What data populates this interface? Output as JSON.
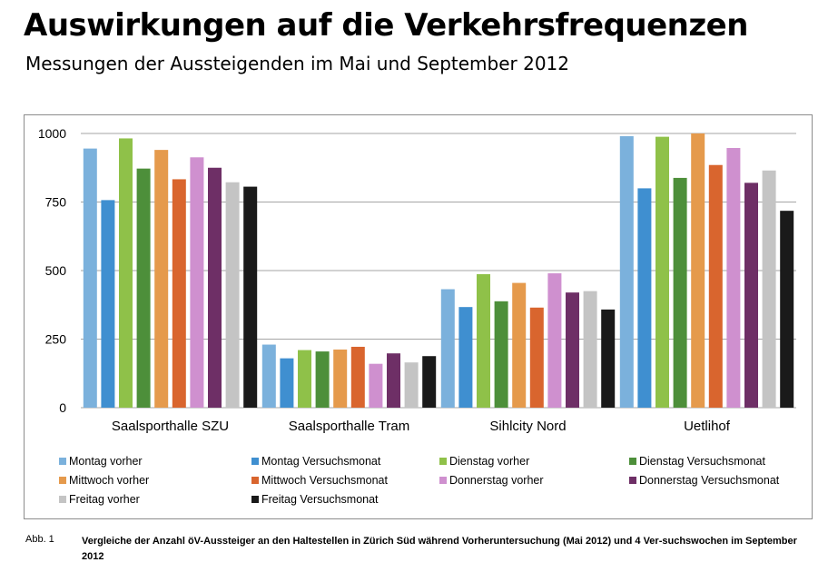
{
  "header": {
    "title": "Auswirkungen auf die Verkehrsfrequenzen",
    "subtitle": "Messungen der Aussteigenden im Mai und September 2012"
  },
  "chart_data": {
    "type": "bar",
    "title": "",
    "xlabel": "",
    "ylabel": "",
    "ylim": [
      0,
      1000
    ],
    "yticks": [
      0,
      250,
      500,
      750,
      1000
    ],
    "ytick_labels": [
      "0",
      "250",
      "500",
      "750",
      "1000"
    ],
    "grid": true,
    "legend_position": "bottom",
    "categories": [
      "Saalsporthalle SZU",
      "Saalsporthalle Tram",
      "Sihlcity Nord",
      "Uetlihof"
    ],
    "series": [
      {
        "name": "Montag vorher",
        "color": "#7bb1dc",
        "values": [
          945,
          230,
          432,
          990
        ]
      },
      {
        "name": "Montag Versuchsmonat",
        "color": "#3f8fd0",
        "values": [
          757,
          180,
          367,
          800
        ]
      },
      {
        "name": "Dienstag vorher",
        "color": "#8fc149",
        "values": [
          982,
          210,
          487,
          988
        ]
      },
      {
        "name": "Dienstag Versuchsmonat",
        "color": "#4d8f3a",
        "values": [
          872,
          205,
          388,
          838
        ]
      },
      {
        "name": "Mittwoch vorher",
        "color": "#e59a4c",
        "values": [
          940,
          212,
          455,
          1000
        ]
      },
      {
        "name": "Mittwoch Versuchsmonat",
        "color": "#d9652e",
        "values": [
          833,
          222,
          365,
          885
        ]
      },
      {
        "name": "Donnerstag vorher",
        "color": "#cf90cf",
        "values": [
          913,
          160,
          490,
          947
        ]
      },
      {
        "name": "Donnerstag Versuchsmonat",
        "color": "#6e2f66",
        "values": [
          875,
          198,
          420,
          820
        ]
      },
      {
        "name": "Freitag vorher",
        "color": "#c4c4c4",
        "values": [
          822,
          165,
          425,
          865
        ]
      },
      {
        "name": "Freitag Versuchsmonat",
        "color": "#1a1a1a",
        "values": [
          806,
          188,
          358,
          718
        ]
      }
    ]
  },
  "caption": {
    "label": "Abb. 1",
    "text": "Vergleiche der Anzahl öV-Aussteiger an den Haltestellen in Zürich Süd während Vorheruntersuchung (Mai 2012) und 4 Ver-suchswochen im September 2012"
  }
}
